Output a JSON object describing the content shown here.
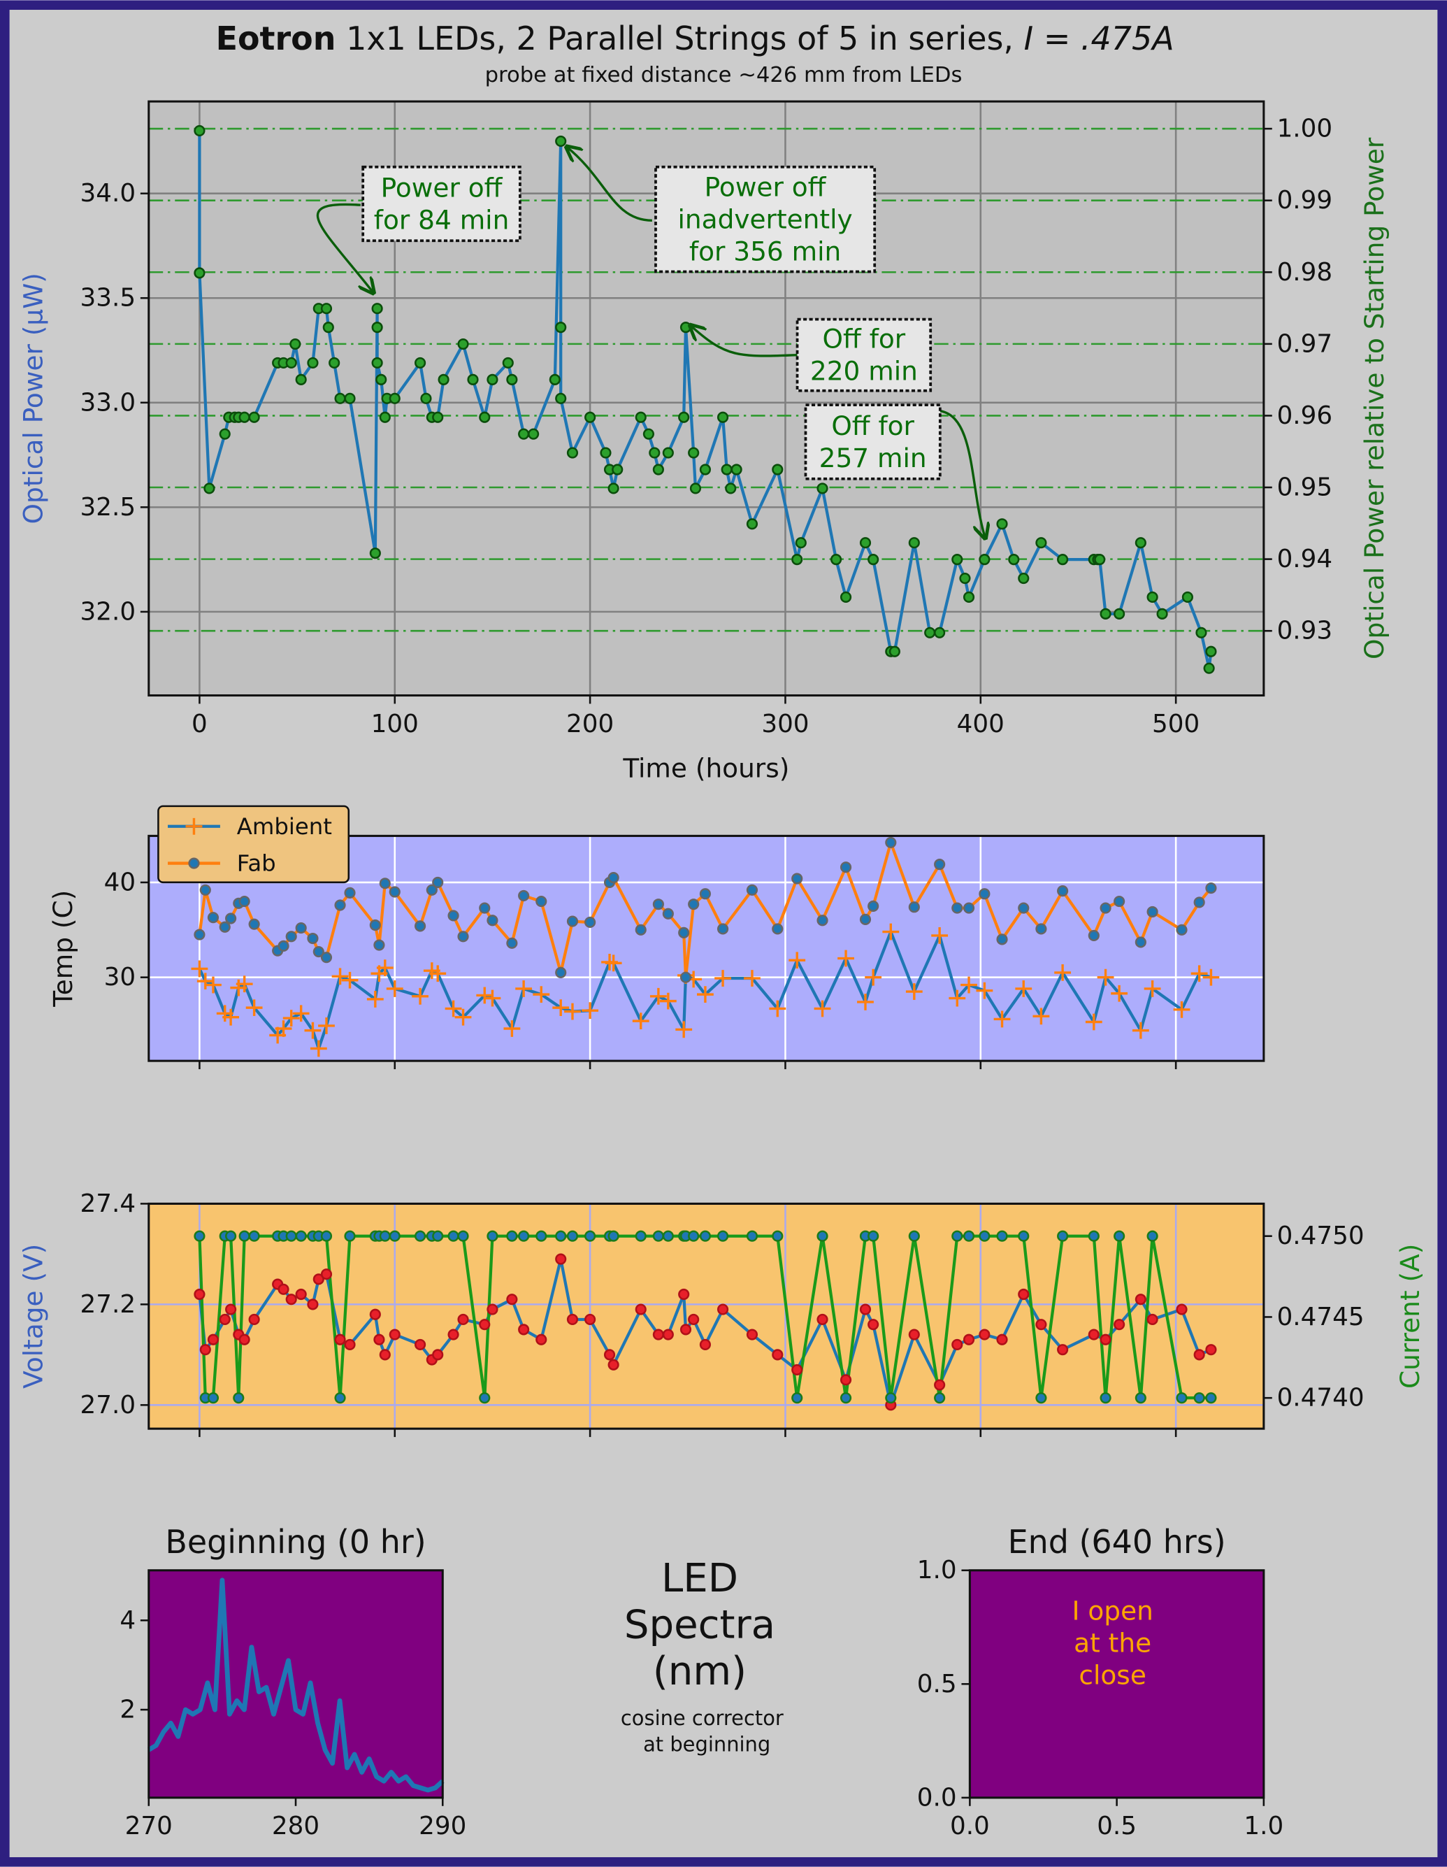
{
  "chart_data": [
    {
      "type": "line",
      "title_parts": [
        "Eotron",
        "1x1 LEDs, 2 Parallel Strings of 5 in series,",
        "I = .475A"
      ],
      "subtitle": "probe at fixed distance ~426 mm from LEDs",
      "xlabel": "Time (hours)",
      "ylabel": "Optical Power (μW)",
      "y2label": "Optical Power relative to Starting Power",
      "ylabel_color": "#3a5fbf",
      "y2label_color": "#1a701a",
      "facecolor": "#c0c0c0",
      "grid": true,
      "grid_color": "#808080",
      "y2grid": true,
      "y2grid_color": "#2e9a2e",
      "xlim": [
        -26,
        545
      ],
      "xticks": [
        0,
        100,
        200,
        300,
        400,
        500
      ],
      "ylim": [
        31.6,
        34.44
      ],
      "yticks": [
        {
          "value": 32,
          "label": "32.0"
        },
        32.5,
        {
          "value": 33,
          "label": "33.0"
        },
        33.5,
        {
          "value": 34,
          "label": "34.0"
        }
      ],
      "y2lim": [
        0.921,
        1.0038
      ],
      "y2ticks": [
        0.93,
        0.94,
        0.95,
        0.96,
        0.97,
        0.98,
        0.99,
        {
          "value": 1,
          "label": "1.00"
        }
      ],
      "annotations": [
        [
          "Power off",
          "for 84 min"
        ],
        [
          "Power off",
          "inadvertently",
          "for 356 min"
        ],
        [
          "Off for",
          "220 min"
        ],
        [
          "Off for",
          "257 min"
        ]
      ],
      "annotation_color": "#0a6e0a",
      "x": [
        0,
        0,
        5,
        13,
        15,
        18,
        20,
        23,
        28,
        40,
        43,
        47,
        49,
        52,
        58,
        61,
        65,
        66,
        69,
        72,
        77,
        90,
        91,
        91,
        91,
        93,
        95,
        96,
        100,
        113,
        116,
        119,
        122,
        125,
        135,
        140,
        146,
        150,
        158,
        160,
        166,
        171,
        182,
        185,
        185,
        185,
        191,
        200,
        208,
        210,
        212,
        214,
        226,
        230,
        233,
        235,
        240,
        248,
        249,
        253,
        254,
        259,
        268,
        270,
        272,
        275,
        283,
        296,
        306,
        308,
        319,
        326,
        331,
        341,
        345,
        354,
        356,
        366,
        374,
        379,
        388,
        392,
        394,
        402,
        411,
        417,
        422,
        431,
        442,
        458,
        460,
        461,
        464,
        471,
        482,
        488,
        493,
        506,
        513,
        517,
        518
      ],
      "series": [
        {
          "color": "#1f77b4",
          "marker": "circle",
          "marker_color": "#2ca02c",
          "marker_edge": "#0b4d0b",
          "values": [
            34.3,
            33.62,
            32.59,
            32.85,
            32.93,
            32.93,
            32.93,
            32.93,
            32.93,
            33.19,
            33.19,
            33.19,
            33.28,
            33.11,
            33.19,
            33.45,
            33.45,
            33.36,
            33.19,
            33.02,
            33.02,
            32.28,
            33.45,
            33.36,
            33.19,
            33.11,
            32.93,
            33.02,
            33.02,
            33.19,
            33.02,
            32.93,
            32.93,
            33.11,
            33.28,
            33.11,
            32.93,
            33.11,
            33.19,
            33.11,
            32.85,
            32.85,
            33.11,
            34.25,
            33.36,
            33.02,
            32.76,
            32.93,
            32.76,
            32.68,
            32.59,
            32.68,
            32.93,
            32.85,
            32.76,
            32.68,
            32.76,
            32.93,
            33.36,
            32.76,
            32.59,
            32.68,
            32.93,
            32.68,
            32.59,
            32.68,
            32.42,
            32.68,
            32.25,
            32.33,
            32.59,
            32.25,
            32.07,
            32.33,
            32.25,
            31.81,
            31.81,
            32.33,
            31.9,
            31.9,
            32.25,
            32.16,
            32.07,
            32.25,
            32.42,
            32.25,
            32.16,
            32.33,
            32.25,
            32.25,
            32.25,
            32.25,
            31.99,
            31.99,
            32.33,
            32.07,
            31.99,
            32.07,
            31.9,
            31.73,
            31.81
          ]
        }
      ]
    },
    {
      "type": "line",
      "ylabel": "Temp (C)",
      "facecolor": "#adadfc",
      "grid": true,
      "grid_color": "#ffffff",
      "show_xticklabels": false,
      "legend": "upper left",
      "legend_color": "#efc47f",
      "xlim": [
        -26,
        545
      ],
      "xticks": [
        0,
        100,
        200,
        300,
        400,
        500
      ],
      "ylim": [
        21.2,
        44.9
      ],
      "yticks": [
        30,
        40
      ],
      "x": [
        0,
        3,
        7,
        13,
        16,
        20,
        23,
        28,
        40,
        43,
        47,
        52,
        58,
        61,
        65,
        72,
        77,
        90,
        92,
        95,
        100,
        113,
        119,
        122,
        130,
        135,
        146,
        150,
        160,
        166,
        175,
        185,
        191,
        200,
        210,
        212,
        226,
        235,
        240,
        248,
        249,
        253,
        259,
        268,
        283,
        296,
        306,
        319,
        331,
        341,
        345,
        354,
        366,
        379,
        388,
        394,
        402,
        411,
        422,
        431,
        442,
        458,
        464,
        471,
        482,
        488,
        503,
        512,
        518
      ],
      "series": [
        {
          "name": "Ambient",
          "color": "#1f77b4",
          "marker": "plus",
          "marker_color": "#ff7f0e",
          "marker_edge": "#ff7f0e",
          "values": [
            30.9,
            29.6,
            29.2,
            26.2,
            25.8,
            28.9,
            29.3,
            26.8,
            23.9,
            24.6,
            25.7,
            26.2,
            24.4,
            22.5,
            24.9,
            30.1,
            29.7,
            27.7,
            30.4,
            31,
            28.8,
            28,
            30.7,
            30.4,
            26.7,
            25.8,
            28.1,
            27.8,
            24.6,
            28.8,
            28.2,
            26.8,
            26.4,
            26.5,
            31.6,
            31.5,
            25.4,
            28,
            27.5,
            24.5,
            30.2,
            29.8,
            28.2,
            29.9,
            29.9,
            26.7,
            31.8,
            26.7,
            32,
            27.4,
            30,
            34.8,
            28.5,
            34.4,
            27.8,
            29.2,
            28.6,
            25.6,
            28.8,
            25.9,
            30.5,
            25.3,
            30,
            28.3,
            24.4,
            28.8,
            26.6,
            30.4,
            30
          ]
        },
        {
          "name": "Fab",
          "color": "#ff7f0e",
          "marker": "circle",
          "marker_color": "#1f77b4",
          "marker_edge": "#666666",
          "values": [
            34.5,
            39.2,
            36.3,
            35.3,
            36.2,
            37.8,
            38,
            35.6,
            32.8,
            33.3,
            34.3,
            35.2,
            34.1,
            32.7,
            32.1,
            37.6,
            38.9,
            35.5,
            33.4,
            39.9,
            39,
            35.4,
            39.2,
            40,
            36.5,
            34.3,
            37.3,
            36,
            33.6,
            38.6,
            38,
            30.5,
            35.9,
            35.8,
            40,
            40.5,
            35,
            37.7,
            36.7,
            34.7,
            30,
            37.7,
            38.8,
            35.1,
            39.2,
            35.1,
            40.4,
            36,
            41.6,
            36.1,
            37.5,
            44.2,
            37.4,
            41.9,
            37.3,
            37.3,
            38.8,
            34,
            37.3,
            35.1,
            39.1,
            34.4,
            37.3,
            38,
            33.7,
            36.9,
            35,
            37.9,
            39.4
          ]
        }
      ]
    },
    {
      "type": "line",
      "ylabel": "Voltage (V)",
      "y2label": "Current (A)",
      "ylabel_color": "#3a5fbf",
      "y2label_color": "#1a8a1a",
      "facecolor": "#f8c46e",
      "grid": true,
      "grid_color": "#aaaaee",
      "show_xticklabels": false,
      "xlim": [
        -26,
        545
      ],
      "xticks": [
        0,
        100,
        200,
        300,
        400,
        500
      ],
      "ylim": [
        26.953,
        27.4
      ],
      "yticks": [
        {
          "value": 27,
          "label": "27.0"
        },
        27.2,
        27.4
      ],
      "y2lim": [
        0.47381,
        0.4752
      ],
      "y2ticks": [
        {
          "value": 0.474,
          "label": "0.4740"
        },
        0.4745,
        {
          "value": 0.475,
          "label": "0.4750"
        }
      ],
      "x": [
        0,
        3,
        7,
        13,
        16,
        20,
        23,
        28,
        40,
        43,
        47,
        52,
        58,
        61,
        65,
        72,
        77,
        90,
        92,
        95,
        100,
        113,
        119,
        122,
        130,
        135,
        146,
        150,
        160,
        166,
        175,
        185,
        191,
        200,
        210,
        212,
        226,
        235,
        240,
        248,
        249,
        253,
        259,
        268,
        283,
        296,
        306,
        319,
        331,
        341,
        345,
        354,
        366,
        379,
        388,
        394,
        402,
        411,
        422,
        431,
        442,
        458,
        464,
        471,
        482,
        488,
        503,
        512,
        518
      ],
      "series": [
        {
          "name": "Voltage",
          "color": "#1f77b4",
          "marker": "circle",
          "marker_color": "#e8202a",
          "marker_edge": "#b01018",
          "values": [
            27.22,
            27.11,
            27.13,
            27.17,
            27.19,
            27.14,
            27.13,
            27.17,
            27.24,
            27.23,
            27.21,
            27.22,
            27.2,
            27.25,
            27.26,
            27.13,
            27.12,
            27.18,
            27.13,
            27.1,
            27.14,
            27.12,
            27.09,
            27.1,
            27.14,
            27.17,
            27.16,
            27.19,
            27.21,
            27.15,
            27.13,
            27.29,
            27.17,
            27.17,
            27.1,
            27.08,
            27.19,
            27.14,
            27.14,
            27.22,
            27.15,
            27.17,
            27.12,
            27.19,
            27.14,
            27.1,
            27.07,
            27.17,
            27.05,
            27.19,
            27.16,
            27,
            27.14,
            27.04,
            27.12,
            27.13,
            27.14,
            27.13,
            27.22,
            27.16,
            27.11,
            27.14,
            27.13,
            27.16,
            27.21,
            27.17,
            27.19,
            27.1,
            27.11
          ]
        },
        {
          "name": "Current",
          "axis": "y2",
          "color": "#1a9a1a",
          "marker": "circle",
          "marker_color": "#1f77b4",
          "marker_edge": "#1a7a1a",
          "values": [
            0.475,
            0.474,
            0.474,
            0.475,
            0.475,
            0.474,
            0.475,
            0.475,
            0.475,
            0.475,
            0.475,
            0.475,
            0.475,
            0.475,
            0.475,
            0.474,
            0.475,
            0.475,
            0.475,
            0.475,
            0.475,
            0.475,
            0.475,
            0.475,
            0.475,
            0.475,
            0.474,
            0.475,
            0.475,
            0.475,
            0.475,
            0.475,
            0.475,
            0.475,
            0.475,
            0.475,
            0.475,
            0.475,
            0.475,
            0.475,
            0.475,
            0.475,
            0.475,
            0.475,
            0.475,
            0.475,
            0.474,
            0.475,
            0.474,
            0.475,
            0.475,
            0.474,
            0.475,
            0.474,
            0.475,
            0.475,
            0.475,
            0.475,
            0.475,
            0.474,
            0.475,
            0.475,
            0.474,
            0.475,
            0.474,
            0.475,
            0.474,
            0.474,
            0.474
          ]
        }
      ]
    },
    {
      "type": "line",
      "title": "Beginning (0 hr)",
      "facecolor": "#800080",
      "xlim": [
        270,
        290
      ],
      "xticks": [
        270,
        280,
        290
      ],
      "ylim": [
        0.03,
        5.12
      ],
      "yticks": [
        2,
        4
      ],
      "x": [
        270,
        270.5,
        271,
        271.5,
        272,
        272.5,
        273,
        273.5,
        274,
        274.5,
        275,
        275.5,
        276,
        276.5,
        277,
        277.5,
        278,
        278.5,
        279,
        279.5,
        280,
        280.5,
        281,
        281.5,
        282,
        282.5,
        283,
        283.5,
        284,
        284.5,
        285,
        285.5,
        286,
        286.5,
        287,
        287.5,
        288,
        288.5,
        289,
        289.5,
        290
      ],
      "series": [
        {
          "color": "#1f77b4",
          "line_width": 4,
          "values": [
            1.1,
            1.2,
            1.5,
            1.7,
            1.4,
            2.0,
            1.9,
            2.0,
            2.6,
            2.0,
            4.9,
            1.9,
            2.2,
            2.0,
            3.4,
            2.4,
            2.5,
            1.9,
            2.5,
            3.1,
            2.0,
            1.9,
            2.6,
            1.7,
            1.1,
            0.8,
            2.2,
            0.7,
            1.0,
            0.6,
            0.9,
            0.5,
            0.4,
            0.6,
            0.4,
            0.5,
            0.3,
            0.25,
            0.2,
            0.25,
            0.4
          ]
        }
      ]
    },
    {
      "type": "text",
      "title": [
        "LED",
        "Spectra",
        "(nm)"
      ],
      "subtitle": [
        "cosine corrector",
        "at beginning"
      ]
    },
    {
      "type": "blank",
      "title": "End (640 hrs)",
      "facecolor": "#800080",
      "xlim": [
        0,
        1
      ],
      "xticks": [
        {
          "value": 0,
          "label": "0.0"
        },
        0.5,
        {
          "value": 1,
          "label": "1.0"
        }
      ],
      "ylim": [
        0,
        1
      ],
      "yticks": [
        {
          "value": 0,
          "label": "0.0"
        },
        0.5,
        {
          "value": 1,
          "label": "1.0"
        }
      ],
      "annotations": [
        [
          "I open",
          "at the",
          "close"
        ]
      ],
      "annotation_color": "#ffa500"
    }
  ]
}
